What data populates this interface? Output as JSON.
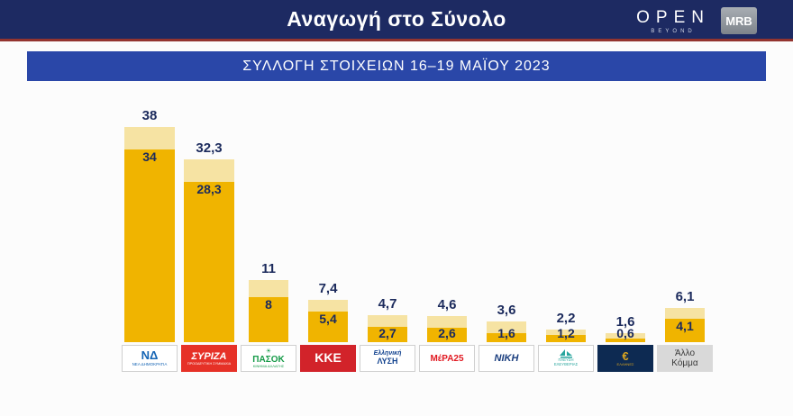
{
  "header": {
    "title": "Αναγωγή στο Σύνολο",
    "open_logo": "OPEN",
    "open_sub": "BEYOND",
    "mrb_logo": "MRB"
  },
  "subtitle": "ΣΥΛΛΟΓΗ ΣΤΟΙΧΕΙΩΝ 16–19 ΜΑΪΟΥ 2023",
  "chart_data": {
    "type": "bar",
    "title": "Αναγωγή στο Σύνολο",
    "subtitle": "ΣΥΛΛΟΓΗ ΣΤΟΙΧΕΙΩΝ 16–19 ΜΑΪΟΥ 2023",
    "categories": [
      "ΝΕΑ ΔΗΜΟΚΡΑΤΙΑ",
      "ΣΥΡΙΖΑ",
      "ΠΑΣΟΚ",
      "ΚΚΕ",
      "ΕΛΛΗΝΙΚΗ ΛΥΣΗ",
      "ΜέΡΑ25",
      "ΝΙΚΗ",
      "ΠΛΕΥΣΗ ΕΛΕΥΘΕΡΙΑΣ",
      "ΕΛΛΗΝΕΣ",
      "ΑΛΛΟ ΚΟΜΜΑ"
    ],
    "series": [
      {
        "name": "low",
        "color": "#f0b400",
        "values": [
          34,
          28.3,
          8,
          5.4,
          2.7,
          2.6,
          1.6,
          1.2,
          0.6,
          4.1
        ],
        "labels": [
          "34",
          "28,3",
          "8",
          "5,4",
          "2,7",
          "2,6",
          "1,6",
          "1,2",
          "0,6",
          "4,1"
        ]
      },
      {
        "name": "high",
        "color": "#f6e3a3",
        "values": [
          38,
          32.3,
          11,
          7.4,
          4.7,
          4.6,
          3.6,
          2.2,
          1.6,
          6.1
        ],
        "labels": [
          "38",
          "32,3",
          "11",
          "7,4",
          "4,7",
          "4,6",
          "3,6",
          "2,2",
          "1,6",
          "6,1"
        ]
      }
    ],
    "ylim": [
      0,
      40
    ],
    "grid": false,
    "legend": false,
    "label_color": "#1b2a5c"
  },
  "parties": [
    {
      "key": "nea-dimokratia",
      "logo_bg": "#ffffff",
      "border": true,
      "lines": [
        {
          "text": "ΝΔ",
          "color": "#1464b4",
          "size": 13,
          "bold": true
        },
        {
          "text": "ΝΕΑ ΔΗΜΟΚΡΑΤΙΑ",
          "color": "#1464b4",
          "size": 4.5
        }
      ]
    },
    {
      "key": "syriza",
      "logo_bg": "#e63127",
      "border": false,
      "lines": [
        {
          "text": "ΣΥΡΙΖΑ",
          "color": "#ffffff",
          "size": 11,
          "bold": true,
          "italic": true
        },
        {
          "text": "ΠΡΟΟΔΕΥΤΙΚΗ ΣΥΜΜΑΧΙΑ",
          "color": "#ffffff",
          "size": 3.8
        }
      ]
    },
    {
      "key": "pasok",
      "logo_bg": "#ffffff",
      "border": true,
      "emblem": "sun",
      "lines": [
        {
          "text": "ΠΑΣΟΚ",
          "color": "#169b48",
          "size": 10,
          "bold": true
        },
        {
          "text": "ΚΙΝΗΜΑ ΑΛΛΑΓΗΣ",
          "color": "#169b48",
          "size": 4
        }
      ]
    },
    {
      "key": "kke",
      "logo_bg": "#d2232a",
      "border": false,
      "lines": [
        {
          "text": "ΚΚΕ",
          "color": "#ffffff",
          "size": 14,
          "bold": true
        }
      ]
    },
    {
      "key": "elliniki-lysi",
      "logo_bg": "#ffffff",
      "border": true,
      "lines": [
        {
          "text": "Ελληνική",
          "color": "#10418e",
          "size": 7,
          "bold": true,
          "italic": true
        },
        {
          "text": "ΛΥΣΗ",
          "color": "#10418e",
          "size": 9,
          "bold": true
        }
      ]
    },
    {
      "key": "mera25",
      "logo_bg": "#ffffff",
      "border": true,
      "lines": [
        {
          "text": "ΜέΡΑ25",
          "color": "#e11a22",
          "size": 10,
          "bold": true
        }
      ]
    },
    {
      "key": "niki",
      "logo_bg": "#ffffff",
      "border": true,
      "lines": [
        {
          "text": "ΝΙΚΗ",
          "color": "#1a3e7e",
          "size": 11,
          "bold": true,
          "italic": true
        }
      ]
    },
    {
      "key": "plefsi-eleftherias",
      "logo_bg": "#ffffff",
      "border": true,
      "emblem": "sail",
      "lines": [
        {
          "text": "ΠΛΕΥΣΗ",
          "color": "#27a59d",
          "size": 4.2
        },
        {
          "text": "ΕΛΕΥΘΕΡΙΑΣ",
          "color": "#27a59d",
          "size": 4.2
        }
      ]
    },
    {
      "key": "ellines",
      "logo_bg": "#0d2a52",
      "border": false,
      "lines": [
        {
          "text": "€",
          "color": "#d9a520",
          "size": 13,
          "bold": true
        },
        {
          "text": "ΕΛΛΗΝΕΣ",
          "color": "#d9a520",
          "size": 4
        }
      ]
    },
    {
      "key": "allo-komma",
      "logo_bg": "#d9d9d9",
      "border": false,
      "lines": [
        {
          "text": "Άλλο",
          "color": "#3a3a3a",
          "size": 10
        },
        {
          "text": "Κόμμα",
          "color": "#3a3a3a",
          "size": 10
        }
      ]
    }
  ]
}
